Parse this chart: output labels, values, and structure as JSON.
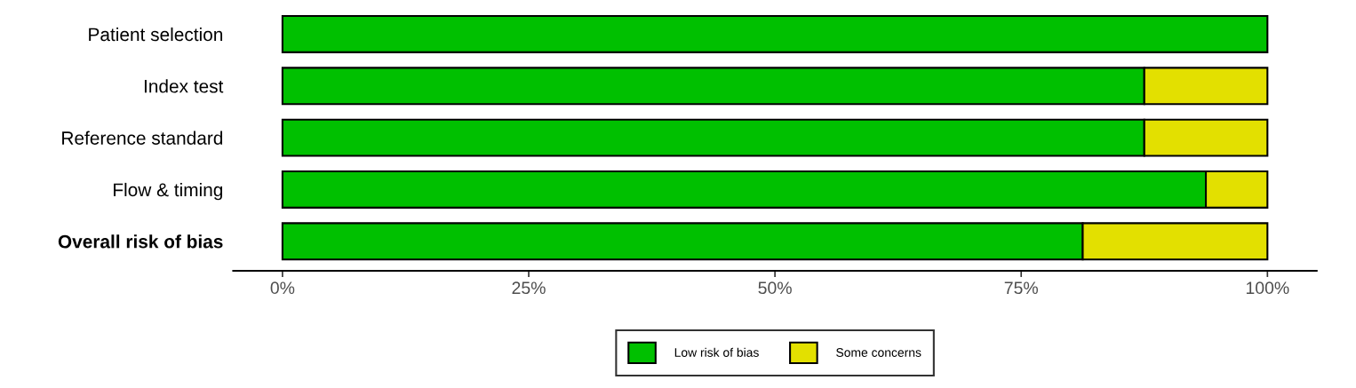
{
  "chart_data": {
    "type": "bar",
    "orientation": "horizontal",
    "stacked": true,
    "categories": [
      "Patient selection",
      "Index test",
      "Reference standard",
      "Flow & timing",
      "Overall risk of bias"
    ],
    "series": [
      {
        "name": "Low risk of bias",
        "color": "#00c000",
        "values": [
          100,
          87.5,
          87.5,
          93.75,
          81.25
        ]
      },
      {
        "name": "Some concerns",
        "color": "#e3e000",
        "values": [
          0,
          12.5,
          12.5,
          6.25,
          18.75
        ]
      }
    ],
    "xlim": [
      -5,
      105
    ],
    "xticks": [
      {
        "value": 0,
        "label": "0%"
      },
      {
        "value": 25,
        "label": "25%"
      },
      {
        "value": 50,
        "label": "50%"
      },
      {
        "value": 75,
        "label": "75%"
      },
      {
        "value": 100,
        "label": "100%"
      }
    ],
    "grid": false,
    "legend": "bottom"
  }
}
